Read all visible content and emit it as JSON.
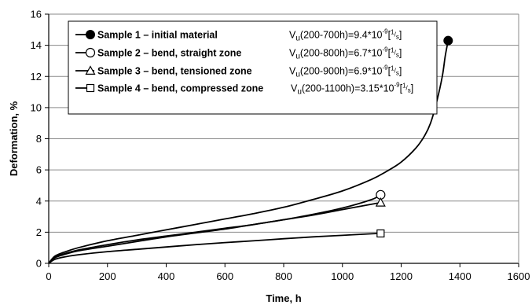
{
  "chart_data": {
    "type": "line",
    "xlabel": "Time, h",
    "ylabel": "Deformation, %",
    "xlim": [
      0,
      1600
    ],
    "ylim": [
      0,
      16
    ],
    "xticks": [
      "0",
      "200",
      "400",
      "600",
      "800",
      "1000",
      "1200",
      "1400",
      "1600"
    ],
    "yticks": [
      "0",
      "2",
      "4",
      "6",
      "8",
      "10",
      "12",
      "14",
      "16"
    ],
    "grid": "horizontal",
    "legend_position": "top-left",
    "series": [
      {
        "name": "Sample 1 – initial material",
        "marker": "filled-circle",
        "rate_label": "V",
        "rate_sub": "u",
        "rate_range": "(200-700h)=9.4*10",
        "rate_exp": "-9",
        "rate_unit_num": "1",
        "rate_unit_den": "s",
        "x": [
          0,
          20,
          50,
          100,
          200,
          300,
          400,
          500,
          600,
          700,
          800,
          900,
          1000,
          1100,
          1150,
          1200,
          1250,
          1280,
          1300,
          1320,
          1340,
          1350,
          1360
        ],
        "y": [
          0,
          0.45,
          0.7,
          1.0,
          1.45,
          1.8,
          2.15,
          2.5,
          2.85,
          3.2,
          3.6,
          4.1,
          4.65,
          5.4,
          5.9,
          6.5,
          7.4,
          8.2,
          9.0,
          10.3,
          12.0,
          13.3,
          14.3
        ]
      },
      {
        "name": "Sample 2 – bend, straight zone",
        "marker": "open-circle",
        "rate_label": "V",
        "rate_sub": "u",
        "rate_range": "(200-800h)=6.7*10",
        "rate_exp": "-9",
        "rate_unit_num": "1",
        "rate_unit_den": "s",
        "x": [
          0,
          20,
          50,
          100,
          200,
          300,
          400,
          500,
          600,
          700,
          800,
          900,
          1000,
          1100,
          1130
        ],
        "y": [
          0,
          0.35,
          0.55,
          0.8,
          1.1,
          1.4,
          1.7,
          1.95,
          2.2,
          2.5,
          2.8,
          3.15,
          3.55,
          4.1,
          4.4
        ]
      },
      {
        "name": "Sample 3 – bend, tensioned zone",
        "marker": "open-triangle",
        "rate_label": "V",
        "rate_sub": "u",
        "rate_range": "(200-900h)=6.9*10",
        "rate_exp": "-9",
        "rate_unit_num": "1",
        "rate_unit_den": "s",
        "x": [
          0,
          20,
          50,
          100,
          200,
          300,
          400,
          500,
          600,
          700,
          800,
          900,
          1000,
          1100,
          1130
        ],
        "y": [
          0,
          0.4,
          0.6,
          0.85,
          1.2,
          1.5,
          1.75,
          2.0,
          2.25,
          2.5,
          2.8,
          3.1,
          3.45,
          3.8,
          3.9
        ]
      },
      {
        "name": "Sample 4 – bend, compressed zone",
        "marker": "open-square",
        "rate_label": "V",
        "rate_sub": "u",
        "rate_range": "(200-1100h)=3.15*10",
        "rate_exp": "-9",
        "rate_unit_num": "1",
        "rate_unit_den": "s",
        "x": [
          0,
          20,
          50,
          100,
          200,
          300,
          400,
          500,
          600,
          700,
          800,
          900,
          1000,
          1100,
          1130
        ],
        "y": [
          0,
          0.25,
          0.4,
          0.55,
          0.75,
          0.9,
          1.05,
          1.2,
          1.33,
          1.45,
          1.58,
          1.7,
          1.8,
          1.9,
          1.92
        ]
      }
    ]
  }
}
